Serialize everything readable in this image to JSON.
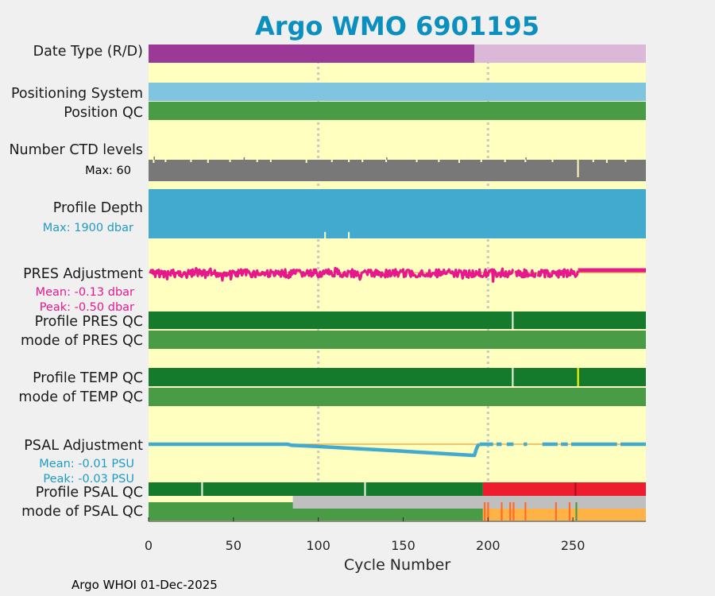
{
  "chart_data": {
    "type": "strip-chart",
    "title": "Argo WMO 6901195",
    "xlabel": "Cycle Number",
    "xlim": [
      0,
      293
    ],
    "xticks": [
      0,
      50,
      100,
      150,
      200,
      250
    ],
    "gridlines_x": [
      100,
      200
    ],
    "footer": "Argo WHOI 01-Dec-2025",
    "colors": {
      "background": "#ffffc0",
      "figure": "#f0f0f0",
      "delayed": "#9b3a96",
      "realtime": "#dbb7d8",
      "positioning": "#7fc5e0",
      "qc_good": "#4a9b46",
      "qc_good_dark": "#157a2c",
      "qc_bad": "#ee1c2f",
      "qc_probably_bad": "#ffb347",
      "qc_probably_bad_dark": "#ff6a2f",
      "qc_missing": "#bfbfbf",
      "ctd": "#787878",
      "depth": "#42a9cf",
      "pres_adj": "#e6188c",
      "psal_adj": "#42a9cf",
      "zero_line": "#e8a33a",
      "title": "#0a8fbf",
      "gridline": "#c8c8c8"
    },
    "rows": {
      "data_type": {
        "label": "Date Type (R/D)",
        "segments": [
          {
            "x0": 0,
            "x1": 192,
            "code": "D",
            "color": "delayed"
          },
          {
            "x0": 192,
            "x1": 293,
            "code": "R",
            "color": "realtime"
          }
        ]
      },
      "positioning_system": {
        "label": "Positioning System",
        "segments": [
          {
            "x0": 0,
            "x1": 293,
            "color": "positioning"
          }
        ]
      },
      "position_qc": {
        "label": "Position QC",
        "segments": [
          {
            "x0": 0,
            "x1": 293,
            "color": "qc_good"
          }
        ]
      },
      "ctd_levels": {
        "label": "Number CTD levels",
        "max_label": "Max: 60",
        "max": 60,
        "typical": 60,
        "dips": [
          [
            3,
            58
          ],
          [
            10,
            59
          ],
          [
            25,
            59
          ],
          [
            35,
            58
          ],
          [
            48,
            59
          ],
          [
            64,
            59
          ],
          [
            72,
            59
          ],
          [
            93,
            58
          ],
          [
            108,
            59
          ],
          [
            118,
            59
          ],
          [
            126,
            59
          ],
          [
            140,
            59
          ],
          [
            158,
            59
          ],
          [
            171,
            59
          ],
          [
            183,
            58
          ],
          [
            196,
            59
          ],
          [
            210,
            59
          ],
          [
            222,
            59
          ],
          [
            238,
            59
          ],
          [
            253,
            40
          ],
          [
            262,
            59
          ],
          [
            270,
            58
          ],
          [
            281,
            59
          ]
        ]
      },
      "profile_depth": {
        "label": "Profile Depth",
        "max_label": "Max: 1900 dbar",
        "max": 1900,
        "typical": 1900,
        "dips": [
          [
            104,
            1650
          ],
          [
            118,
            1650
          ]
        ]
      },
      "pres_adjustment": {
        "label": "PRES Adjustment",
        "mean_label": "Mean: -0.13 dbar",
        "peak_label": "Peak: -0.50 dbar",
        "ylim": [
          -0.55,
          0.25
        ],
        "zero": 0.0,
        "noisy_range": [
          1,
          253
        ],
        "flat_range": [
          253,
          293
        ],
        "flat_value": 0.0
      },
      "profile_pres_qc": {
        "label": "Profile PRES QC",
        "segments": [
          {
            "x0": 0,
            "x1": 293,
            "color": "qc_good_dark"
          }
        ],
        "marks": [
          {
            "x": 214.5,
            "color": "#e0f0d8"
          }
        ]
      },
      "mode_pres_qc": {
        "label": "mode of PRES QC",
        "segments": [
          {
            "x0": 0,
            "x1": 293,
            "color": "qc_good"
          }
        ]
      },
      "profile_temp_qc": {
        "label": "Profile TEMP QC",
        "segments": [
          {
            "x0": 0,
            "x1": 293,
            "color": "qc_good_dark"
          }
        ],
        "marks": [
          {
            "x": 214.5,
            "color": "#e0f0d8"
          },
          {
            "x": 253,
            "color": "#f5f500"
          }
        ]
      },
      "mode_temp_qc": {
        "label": "mode of TEMP QC",
        "segments": [
          {
            "x0": 0,
            "x1": 293,
            "color": "qc_good"
          }
        ]
      },
      "psal_adjustment": {
        "label": "PSAL Adjustment",
        "mean_label": "Mean: -0.01 PSU",
        "peak_label": "Peak: -0.03 PSU",
        "ylim": [
          -0.035,
          0.005
        ],
        "zero": 0.0,
        "line": [
          [
            0,
            0.0
          ],
          [
            82,
            0.0
          ],
          [
            84,
            -0.001
          ],
          [
            100,
            -0.0025
          ],
          [
            150,
            -0.0075
          ],
          [
            191,
            -0.012
          ],
          [
            192,
            -0.012
          ],
          [
            193,
            -0.006
          ],
          [
            194,
            -0.0015
          ],
          [
            195,
            0.0
          ]
        ],
        "segments_after": [
          [
            195,
            203
          ],
          [
            205,
            208
          ],
          [
            211,
            215
          ],
          [
            221,
            223
          ],
          [
            232,
            241
          ],
          [
            243,
            247
          ],
          [
            249,
            276
          ],
          [
            278,
            293
          ]
        ]
      },
      "profile_psal_qc": {
        "label": "Profile PSAL QC",
        "segments": [
          {
            "x0": 0,
            "x1": 197,
            "color": "qc_good_dark"
          },
          {
            "x0": 197,
            "x1": 293,
            "color": "qc_bad"
          }
        ],
        "marks": [
          {
            "x": 31.5,
            "color": "#e0f0d8"
          },
          {
            "x": 127.5,
            "color": "#e0f0d8"
          },
          {
            "x": 251.5,
            "color": "#b01020"
          }
        ]
      },
      "mode_psal_qc": {
        "label": "mode of PSAL QC",
        "segments": [
          {
            "x0": 0,
            "x1": 197,
            "color": "qc_good"
          },
          {
            "x0": 197,
            "x1": 293,
            "color": "qc_probably_bad"
          }
        ],
        "overlay": {
          "x0": 85,
          "x1": 293,
          "color": "qc_missing"
        },
        "marks": [
          {
            "x": 198,
            "color": "#ff6a2f"
          },
          {
            "x": 200,
            "color": "#ff6a2f"
          },
          {
            "x": 208,
            "color": "#ff6a2f"
          },
          {
            "x": 213,
            "color": "#ff6a2f"
          },
          {
            "x": 215,
            "color": "#ff6a2f"
          },
          {
            "x": 222,
            "color": "#ff6a2f"
          },
          {
            "x": 240,
            "color": "#ff6a2f"
          },
          {
            "x": 248,
            "color": "#ff6a2f"
          },
          {
            "x": 252,
            "color": "#4a9b46"
          }
        ]
      }
    }
  }
}
